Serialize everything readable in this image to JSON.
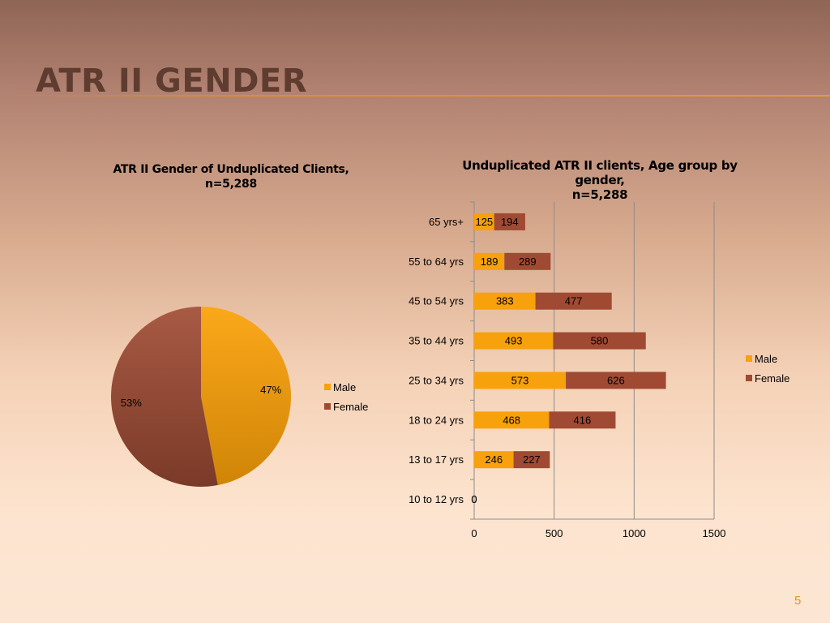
{
  "slide": {
    "title": "ATR II GENDER",
    "page_number": "5"
  },
  "colors": {
    "male": "#f7a10d",
    "female": "#a04a33",
    "title": "#5e3c2f",
    "accent_rule": "#df8e2c",
    "page_number": "#d9962e"
  },
  "chart_data": [
    {
      "type": "pie",
      "title_lines": [
        "ATR II Gender of Unduplicated Clients,",
        "n=5,288"
      ],
      "series_labels": [
        "Male",
        "Female"
      ],
      "values": [
        47,
        53
      ],
      "data_labels": [
        "47%",
        "53%"
      ],
      "legend": [
        "Male",
        "Female"
      ],
      "legend_position": "right"
    },
    {
      "type": "bar",
      "orientation": "horizontal",
      "stacked": true,
      "title_lines": [
        "Unduplicated ATR II clients, Age group by gender,",
        "n=5,288"
      ],
      "categories": [
        "65 yrs+",
        "55 to 64 yrs",
        "45 to 54 yrs",
        "35 to 44 yrs",
        "25 to 34 yrs",
        "18 to 24 yrs",
        "13 to 17 yrs",
        "10 to 12 yrs"
      ],
      "series": [
        {
          "name": "Male",
          "values": [
            125,
            189,
            383,
            493,
            573,
            468,
            246,
            0
          ]
        },
        {
          "name": "Female",
          "values": [
            194,
            289,
            477,
            580,
            626,
            416,
            227,
            0
          ]
        }
      ],
      "xlim": [
        0,
        1500
      ],
      "x_ticks": [
        "0",
        "500",
        "1000",
        "1500"
      ],
      "grid": "vertical",
      "legend": [
        "Male",
        "Female"
      ],
      "legend_position": "right"
    }
  ]
}
